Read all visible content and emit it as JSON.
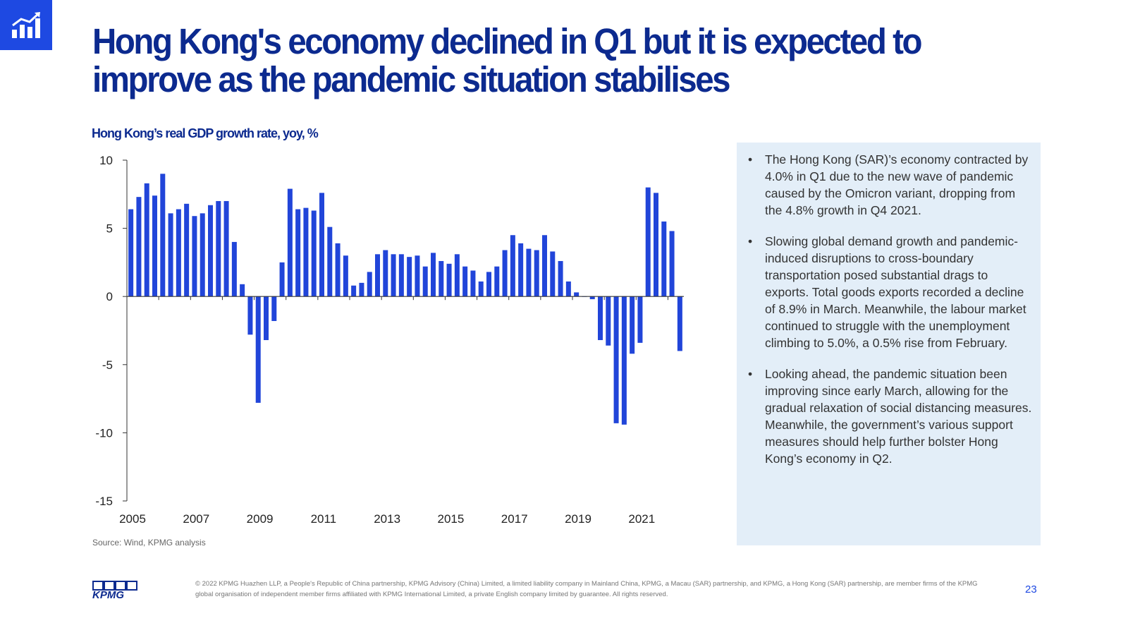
{
  "colors": {
    "brand_blue": "#1e49e2",
    "title_navy": "#0c2a8f",
    "panel_bg": "#e3eef8",
    "bar": "#2145d9"
  },
  "header": {
    "icon": "bar-chart-trend-icon",
    "title": "Hong Kong's economy declined in Q1 but it is expected to improve as the pandemic situation stabilises"
  },
  "chart_data": {
    "type": "bar",
    "title": "Hong Kong’s real GDP growth rate, yoy, %",
    "xlabel": "",
    "ylabel": "",
    "ylim": [
      -15,
      10
    ],
    "y_ticks": [
      "10",
      "5",
      "0",
      "-5",
      "-10",
      "-15"
    ],
    "x_ticks": [
      "2005",
      "2007",
      "2009",
      "2011",
      "2013",
      "2015",
      "2017",
      "2019",
      "2021"
    ],
    "frequency": "quarterly",
    "start": "2005 Q1",
    "end": "2022 Q1",
    "grid": false,
    "legend": "none",
    "values": [
      6.4,
      7.3,
      8.3,
      7.4,
      9.0,
      6.1,
      6.4,
      6.8,
      5.9,
      6.1,
      6.7,
      7.0,
      7.0,
      4.0,
      0.9,
      -2.8,
      -7.8,
      -3.2,
      -1.8,
      2.5,
      7.9,
      6.4,
      6.5,
      6.3,
      7.6,
      5.1,
      3.9,
      3.0,
      0.8,
      1.0,
      1.8,
      3.1,
      3.4,
      3.1,
      3.1,
      2.9,
      3.0,
      2.2,
      3.2,
      2.6,
      2.4,
      3.1,
      2.2,
      1.9,
      1.1,
      1.8,
      2.2,
      3.4,
      4.5,
      3.9,
      3.5,
      3.4,
      4.5,
      3.3,
      2.6,
      1.1,
      0.3,
      0.0,
      -0.2,
      -3.2,
      -3.6,
      -9.3,
      -9.4,
      -4.2,
      -3.4,
      8.0,
      7.6,
      5.5,
      4.8,
      -4.0
    ]
  },
  "source": "Source: Wind, KPMG analysis",
  "panel": {
    "bullets": [
      "The Hong Kong (SAR)’s economy contracted by 4.0% in Q1 due to the new wave of pandemic caused by the Omicron variant, dropping from the 4.8% growth in Q4 2021.",
      "Slowing global demand growth and pandemic-induced disruptions to cross-boundary transportation posed substantial drags to exports. Total goods exports recorded a decline of 8.9% in March. Meanwhile, the labour market continued to struggle with the  unemployment climbing to 5.0%, a 0.5% rise from February.",
      "Looking ahead, the pandemic situation been improving since early March, allowing for the gradual relaxation of social distancing measures. Meanwhile, the government’s various support measures should help further bolster Hong Kong’s economy in Q2."
    ]
  },
  "footer": {
    "logo_text": "KPMG",
    "copyright": "© 2022 KPMG Huazhen LLP, a People's Republic of China partnership, KPMG Advisory (China) Limited, a limited liability company in Mainland China, KPMG, a Macau (SAR) partnership, and KPMG, a Hong Kong (SAR) partnership, are member firms of the KPMG global organisation of independent member firms affiliated with KPMG International Limited, a private English company limited by guarantee. All rights reserved.",
    "page_number": "23"
  }
}
